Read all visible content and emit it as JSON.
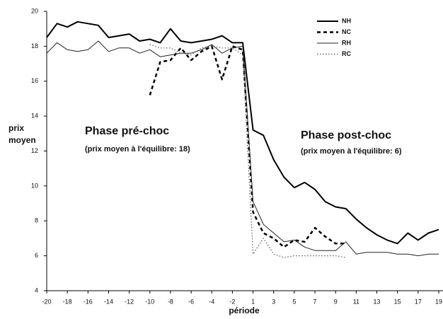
{
  "chart_data": {
    "type": "line",
    "ylabel": [
      "prix",
      "moyen"
    ],
    "xlabel": "période",
    "categories": [
      "-20",
      null,
      "-18",
      null,
      "-16",
      null,
      "-14",
      null,
      "-12",
      null,
      "-10",
      null,
      "-8",
      null,
      "-6",
      null,
      "-4",
      null,
      "-2",
      null,
      "1",
      null,
      "3",
      null,
      "5",
      null,
      "7",
      null,
      "9",
      null,
      "11",
      null,
      "13",
      null,
      "15",
      null,
      "17",
      null,
      "19"
    ],
    "ylim": [
      4,
      20
    ],
    "yticks": [
      4,
      6,
      8,
      10,
      12,
      14,
      16,
      18,
      20
    ],
    "series": [
      {
        "name": "NH",
        "color": "#000000",
        "dash": "solid",
        "width": 2,
        "values": [
          18.5,
          19.3,
          19.1,
          19.4,
          19.3,
          19.2,
          18.5,
          18.6,
          18.7,
          18.3,
          18.4,
          18.2,
          19.0,
          18.3,
          18.2,
          18.3,
          18.4,
          18.6,
          18.2,
          18.2,
          13.2,
          12.9,
          11.5,
          10.5,
          9.9,
          10.2,
          9.8,
          9.1,
          8.8,
          8.7,
          8.1,
          7.6,
          7.2,
          6.9,
          6.7,
          7.3,
          6.9,
          7.3,
          7.5
        ]
      },
      {
        "name": "NC",
        "color": "#000000",
        "dash": "dashed",
        "width": 2.5,
        "values": [
          null,
          null,
          null,
          null,
          null,
          null,
          null,
          null,
          null,
          null,
          15.2,
          17.1,
          17.2,
          17.9,
          17.2,
          17.7,
          18.0,
          16.1,
          18.0,
          17.8,
          8.5,
          7.3,
          7.0,
          6.5,
          6.9,
          6.8,
          7.6,
          7.1,
          6.7,
          6.7,
          null,
          null,
          null,
          null,
          null,
          null,
          null,
          null,
          null
        ]
      },
      {
        "name": "RH",
        "color": "#222222",
        "dash": "solid",
        "width": 1,
        "values": [
          17.6,
          18.2,
          17.8,
          17.7,
          17.8,
          18.3,
          17.7,
          17.9,
          17.9,
          17.6,
          17.8,
          17.4,
          17.5,
          17.6,
          17.6,
          17.8,
          18.1,
          17.6,
          17.9,
          18.0,
          9.1,
          7.8,
          7.3,
          6.8,
          6.9,
          6.5,
          6.3,
          6.3,
          6.3,
          6.8,
          6.1,
          6.2,
          6.2,
          6.2,
          6.1,
          6.1,
          6.0,
          6.1,
          6.1
        ]
      },
      {
        "name": "RC",
        "color": "#555555",
        "dash": "dotted",
        "width": 1.2,
        "values": [
          null,
          null,
          null,
          null,
          null,
          null,
          null,
          null,
          null,
          null,
          18.1,
          17.9,
          17.9,
          17.6,
          17.5,
          17.9,
          18.0,
          17.9,
          17.9,
          17.5,
          6.1,
          7.0,
          6.1,
          5.9,
          6.0,
          6.0,
          6.0,
          6.0,
          6.0,
          5.9,
          null,
          null,
          null,
          null,
          null,
          null,
          null,
          null,
          null
        ]
      }
    ],
    "annotations": [
      {
        "text": "Phase pré-choc",
        "size": "big"
      },
      {
        "text": "(prix moyen à l'équilibre: 18)",
        "size": "small"
      },
      {
        "text": "Phase post-choc",
        "size": "big"
      },
      {
        "text": "(prix moyen à l'équilibre: 6)",
        "size": "small"
      }
    ]
  }
}
